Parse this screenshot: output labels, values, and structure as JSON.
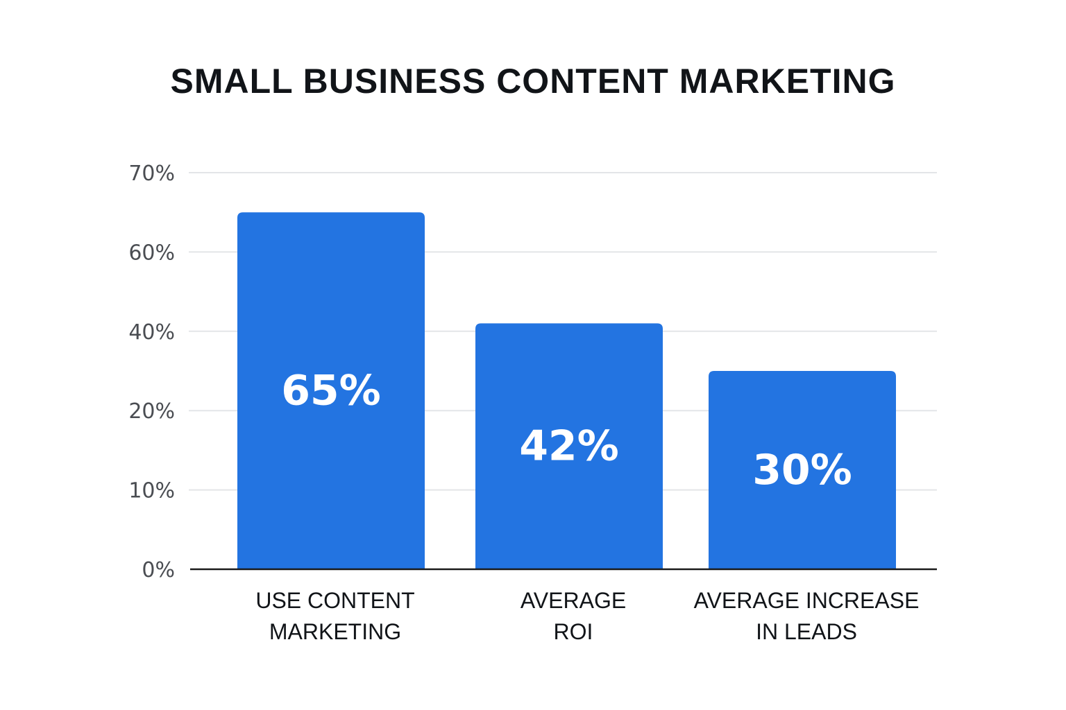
{
  "chart_data": {
    "type": "bar",
    "title": "SMALL BUSINESS CONTENT MARKETING",
    "xlabel": "",
    "ylabel": "",
    "categories": [
      [
        "USE CONTENT",
        "MARKETING"
      ],
      [
        "AVERAGE",
        "ROI"
      ],
      [
        "AVERAGE INCREASE",
        "IN LEADS"
      ]
    ],
    "values": [
      65,
      42,
      30
    ],
    "value_labels": [
      "65%",
      "42%",
      "30%"
    ],
    "y_ticks": [
      "0%",
      "10%",
      "20%",
      "40%",
      "60%",
      "70%"
    ],
    "grid": true,
    "legend": "none",
    "bar_color": "#2374e1"
  }
}
